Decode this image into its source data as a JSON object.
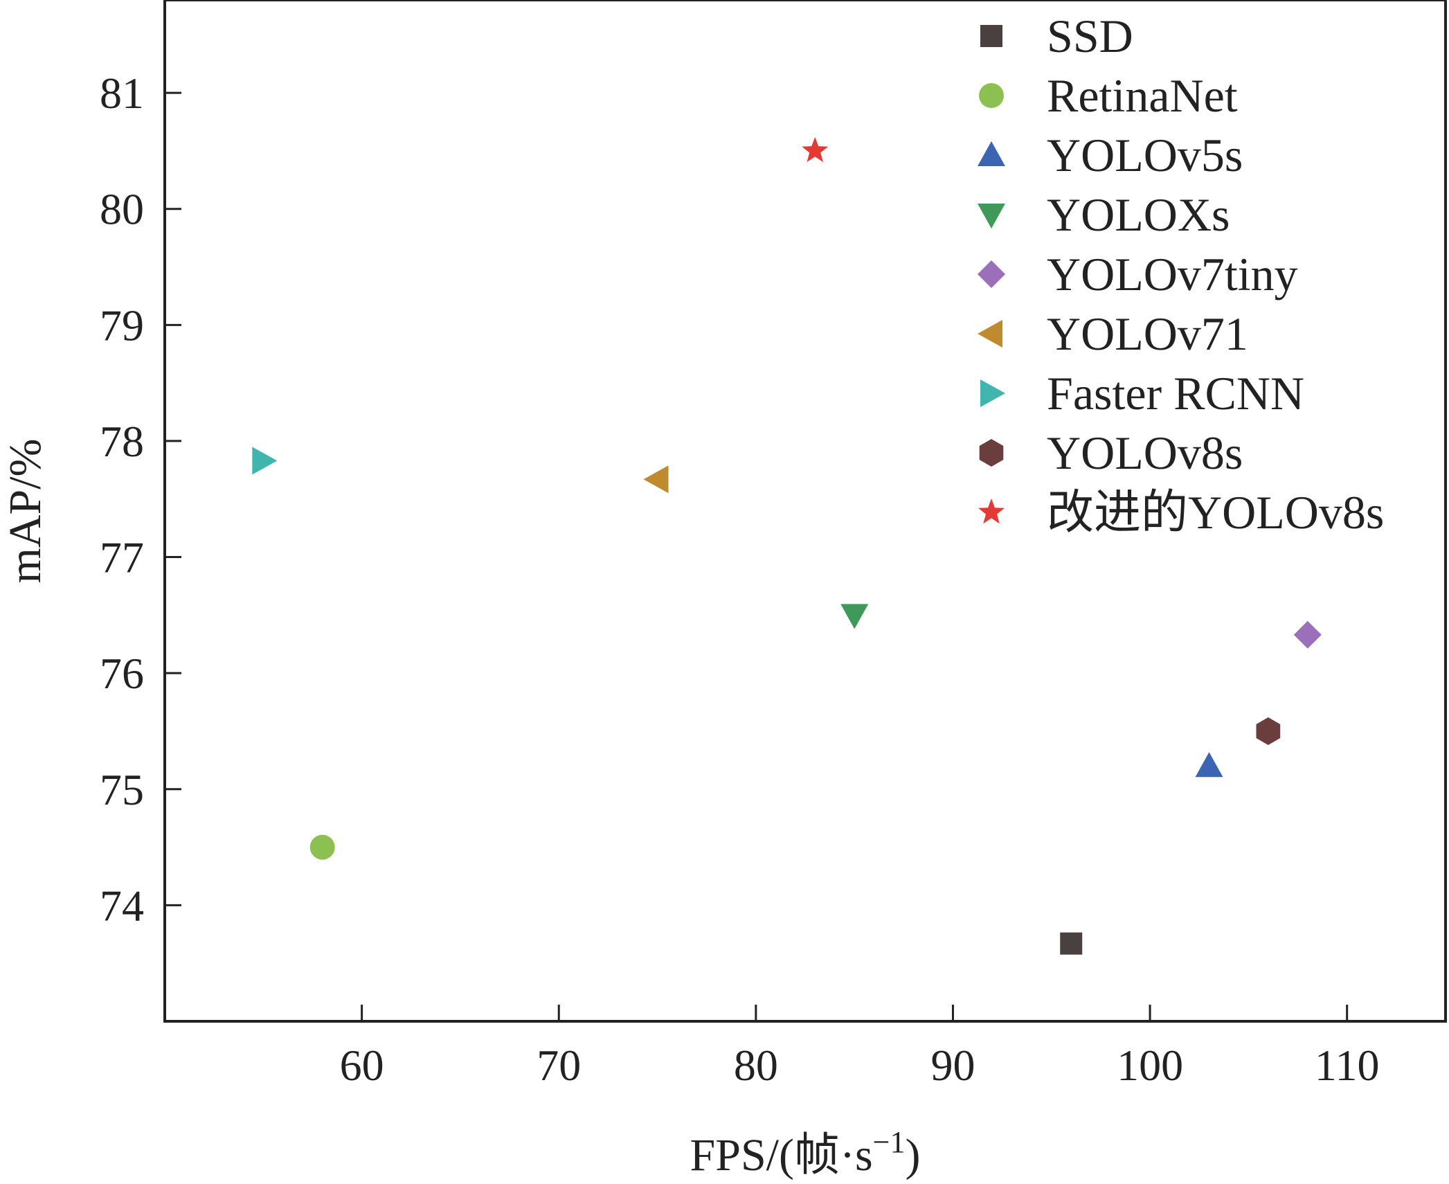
{
  "chart_data": {
    "type": "scatter",
    "xlabel": "FPS/(帧·s",
    "xlabel_sup": "−1",
    "xlabel_close": ")",
    "ylabel": "mAP/%",
    "xlim": [
      50,
      115
    ],
    "ylim": [
      73,
      81.8
    ],
    "xticks": [
      60,
      70,
      80,
      90,
      100,
      110
    ],
    "yticks": [
      74,
      75,
      76,
      77,
      78,
      79,
      80,
      81
    ],
    "grid": false,
    "legend_position": "top-right",
    "series": [
      {
        "name": "SSD",
        "marker": "square",
        "color": "#4a4040",
        "x": 96,
        "y": 73.67
      },
      {
        "name": "RetinaNet",
        "marker": "circle",
        "color": "#8cc152",
        "x": 58,
        "y": 74.5
      },
      {
        "name": "YOLOv5s",
        "marker": "triangle-up",
        "color": "#3b65b3",
        "x": 103,
        "y": 75.2
      },
      {
        "name": "YOLOXs",
        "marker": "triangle-down",
        "color": "#3f9a5a",
        "x": 85,
        "y": 76.5
      },
      {
        "name": "YOLOv7tiny",
        "marker": "diamond",
        "color": "#9b6fba",
        "x": 108,
        "y": 76.33
      },
      {
        "name": "YOLOv71",
        "marker": "triangle-left",
        "color": "#c08a2e",
        "x": 75,
        "y": 77.67
      },
      {
        "name": "Faster RCNN",
        "marker": "triangle-right",
        "color": "#3fb5ad",
        "x": 55,
        "y": 77.83
      },
      {
        "name": "YOLOv8s",
        "marker": "hexagon",
        "color": "#6b3d3d",
        "x": 106,
        "y": 75.5
      },
      {
        "name": "改进的YOLOv8s",
        "marker": "star",
        "color": "#e53935",
        "x": 83,
        "y": 80.5
      }
    ]
  }
}
